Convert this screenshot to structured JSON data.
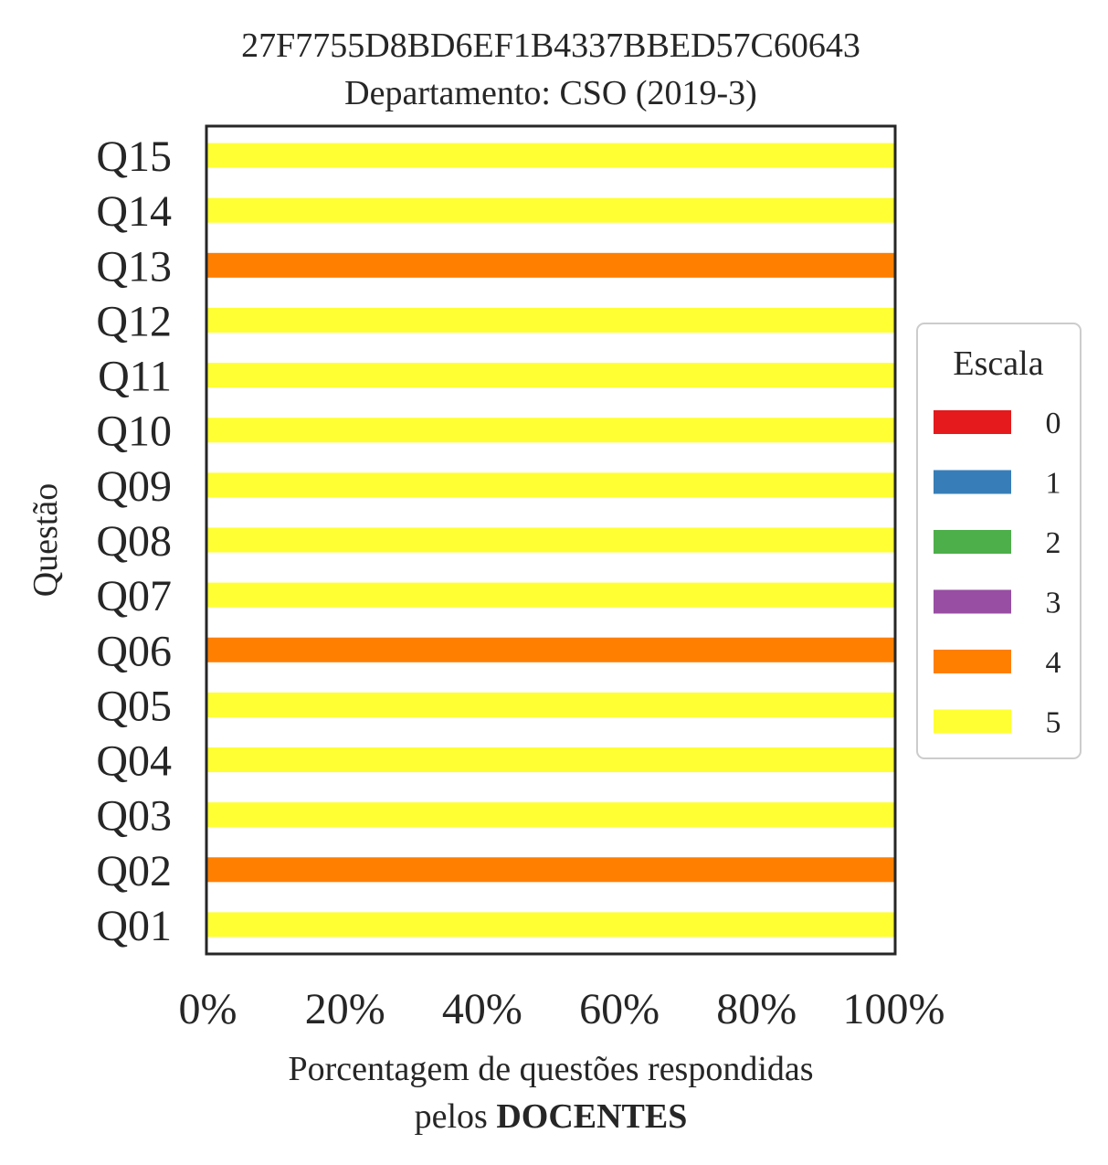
{
  "chart_data": {
    "type": "bar",
    "orientation": "horizontal",
    "stacked": true,
    "title": "27F7755D8BD6EF1B4337BBED57C60643",
    "subtitle": "Departamento: CSO (2019-3)",
    "xlabel_line1": "Porcentagem de questões respondidas",
    "xlabel_line2_prefix": "pelos ",
    "xlabel_line2_bold": "DOCENTES",
    "ylabel": "Questão",
    "xlim": [
      0,
      100
    ],
    "xticks": [
      "0%",
      "20%",
      "40%",
      "60%",
      "80%",
      "100%"
    ],
    "categories": [
      "Q01",
      "Q02",
      "Q03",
      "Q04",
      "Q05",
      "Q06",
      "Q07",
      "Q08",
      "Q09",
      "Q10",
      "Q11",
      "Q12",
      "Q13",
      "Q14",
      "Q15"
    ],
    "series": [
      {
        "name": "0",
        "color": "#e41a1c",
        "values": [
          0,
          0,
          0,
          0,
          0,
          0,
          0,
          0,
          0,
          0,
          0,
          0,
          0,
          0,
          0
        ]
      },
      {
        "name": "1",
        "color": "#377eb8",
        "values": [
          0,
          0,
          0,
          0,
          0,
          0,
          0,
          0,
          0,
          0,
          0,
          0,
          0,
          0,
          0
        ]
      },
      {
        "name": "2",
        "color": "#4daf4a",
        "values": [
          0,
          0,
          0,
          0,
          0,
          0,
          0,
          0,
          0,
          0,
          0,
          0,
          0,
          0,
          0
        ]
      },
      {
        "name": "3",
        "color": "#984ea3",
        "values": [
          0,
          0,
          0,
          0,
          0,
          0,
          0,
          0,
          0,
          0,
          0,
          0,
          0,
          0,
          0
        ]
      },
      {
        "name": "4",
        "color": "#ff7f00",
        "values": [
          0,
          100,
          0,
          0,
          0,
          100,
          0,
          0,
          0,
          0,
          0,
          0,
          100,
          0,
          0
        ]
      },
      {
        "name": "5",
        "color": "#ffff33",
        "values": [
          100,
          0,
          100,
          100,
          100,
          0,
          100,
          100,
          100,
          100,
          100,
          100,
          0,
          100,
          100
        ]
      }
    ],
    "legend_title": "Escala",
    "legend_position": "right",
    "grid": false
  }
}
